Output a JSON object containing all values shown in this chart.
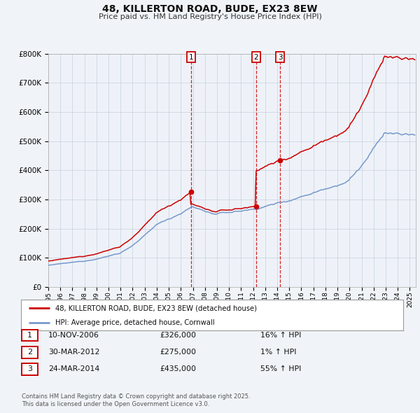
{
  "title": "48, KILLERTON ROAD, BUDE, EX23 8EW",
  "subtitle": "Price paid vs. HM Land Registry's House Price Index (HPI)",
  "bg_color": "#f0f4f8",
  "plot_bg_color": "#eef2f8",
  "red_color": "#cc0000",
  "blue_color": "#7799cc",
  "grid_color": "#c8d0dc",
  "legend_label_red": "48, KILLERTON ROAD, BUDE, EX23 8EW (detached house)",
  "legend_label_blue": "HPI: Average price, detached house, Cornwall",
  "transactions": [
    {
      "num": 1,
      "date": "10-NOV-2006",
      "price": "£326,000",
      "pct": "16%",
      "dir": "↑",
      "x": 2006.86,
      "price_val": 326000
    },
    {
      "num": 2,
      "date": "30-MAR-2012",
      "price": "£275,000",
      "pct": "1%",
      "dir": "↑",
      "x": 2012.25,
      "price_val": 275000
    },
    {
      "num": 3,
      "date": "24-MAR-2014",
      "price": "£435,000",
      "pct": "55%",
      "dir": "↑",
      "x": 2014.23,
      "price_val": 435000
    }
  ],
  "footer": "Contains HM Land Registry data © Crown copyright and database right 2025.\nThis data is licensed under the Open Government Licence v3.0.",
  "ylim": [
    0,
    800000
  ],
  "xlim": [
    1995,
    2025.5
  ],
  "yticks": [
    0,
    100000,
    200000,
    300000,
    400000,
    500000,
    600000,
    700000,
    800000
  ]
}
